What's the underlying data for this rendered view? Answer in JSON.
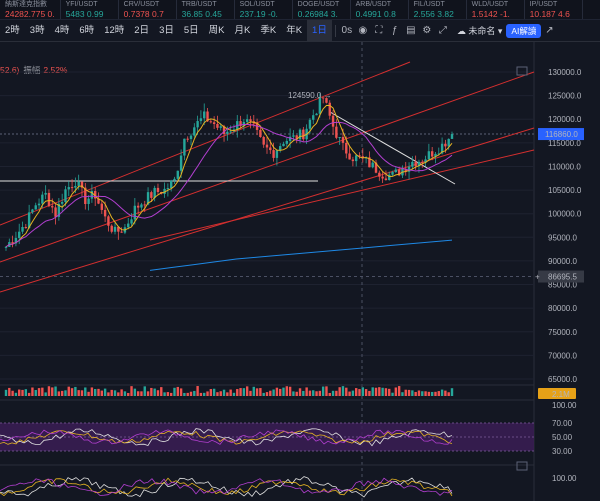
{
  "ticker": [
    {
      "name": "納斯達克指數",
      "price": "24282.775",
      "change": "0.",
      "color": "#ef5350"
    },
    {
      "name": "YFI/USDT",
      "price": "5483",
      "change": "0.99",
      "color": "#26a69a"
    },
    {
      "name": "CRV/USDT",
      "price": "0.7378",
      "change": "0.7",
      "color": "#ef5350"
    },
    {
      "name": "TRB/USDT",
      "price": "36.85",
      "change": "0.45",
      "color": "#26a69a"
    },
    {
      "name": "SOL/USDT",
      "price": "237.19",
      "change": "-0.",
      "color": "#26a69a"
    },
    {
      "name": "DOGE/USDT",
      "price": "0.26984",
      "change": "3.",
      "color": "#26a69a"
    },
    {
      "name": "ARB/USDT",
      "price": "0.4991",
      "change": "0.8",
      "color": "#26a69a"
    },
    {
      "name": "FIL/USDT",
      "price": "2.556",
      "change": "3.82",
      "color": "#26a69a"
    },
    {
      "name": "WLD/USDT",
      "price": "1.5142",
      "change": "-1.",
      "color": "#ef5350"
    },
    {
      "name": "IP/USDT",
      "price": "10.187",
      "change": "4.6",
      "color": "#ef5350"
    }
  ],
  "timeframes": [
    "2時",
    "3時",
    "4時",
    "6時",
    "12時",
    "2日",
    "3日",
    "5日",
    "周K",
    "月K",
    "季K",
    "年K",
    "1日"
  ],
  "active_timeframe": "1日",
  "toolbar": {
    "zero_s": "0s",
    "unnamed_label": "未命名",
    "ai_label": "AI解讀"
  },
  "legend": {
    "value": "52.6)",
    "label": "振幅",
    "pct": "2.52%"
  },
  "price_axis": [
    "130000.0",
    "125000.0",
    "120000.0",
    "115000.0",
    "110000.0",
    "105000.0",
    "100000.0",
    "95000.0",
    "90000.0",
    "85000.0",
    "80000.0",
    "75000.0",
    "70000.0",
    "65000.0"
  ],
  "current_price": "116860.0",
  "crosshair_price": "86695.5",
  "high_label": "124590.0",
  "volume_label": "2.1M",
  "rsi_axis": [
    "100.00",
    "70.00",
    "50.00",
    "30.00"
  ],
  "kdj_axis": "100.00",
  "colors": {
    "up": "#26a69a",
    "down": "#ef5350",
    "channel": "#d32f2f",
    "ma_yellow": "#e6b422",
    "ma_purple": "#b23fd0",
    "ma_blue": "#1e88e5",
    "current": "#2962ff"
  },
  "chart_data": {
    "type": "candlestick",
    "series_close": [
      93000,
      95500,
      98000,
      102000,
      104000,
      100000,
      105000,
      107000,
      103000,
      104000,
      99000,
      96000,
      97000,
      101000,
      103000,
      104500,
      105000,
      107000,
      116000,
      118500,
      120500,
      119000,
      117000,
      118500,
      120000,
      118000,
      114000,
      113000,
      115500,
      116000,
      117000,
      121000,
      124590,
      118500,
      114000,
      112000,
      111500,
      110000,
      108500,
      108000,
      109500,
      111000,
      111500,
      113000,
      114500,
      116860
    ],
    "ma_slow": [
      98000,
      98500,
      99000,
      99500,
      100000,
      100300,
      100600,
      100900,
      101200,
      101500,
      101800,
      102100,
      102400,
      102700,
      103000
    ],
    "high": 124590,
    "current": 116860
  }
}
